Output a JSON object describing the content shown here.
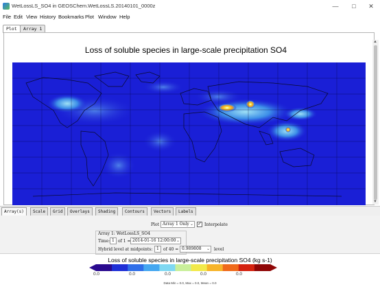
{
  "window": {
    "title": "WetLossLS_SO4 in GEOSChem.WetLossLS.20140101_0000z",
    "minimize": "—",
    "maximize": "□",
    "close": "✕"
  },
  "menu": [
    "File",
    "Edit",
    "View",
    "History",
    "Bookmarks",
    "Plot",
    "Window",
    "Help"
  ],
  "top_tabs": [
    "Plot",
    "Array 1"
  ],
  "plot": {
    "title": "Loss of soluble species in large-scale precipitation SO4"
  },
  "control_tabs": [
    "Array(s)",
    "Scale",
    "Grid",
    "Overlays",
    "Shading",
    "Contours",
    "Vectors",
    "Labels"
  ],
  "controls": {
    "plot_label": "Plot",
    "plot_mode": "Array 1 Only",
    "interpolate_label": "Interpolate",
    "interpolate_checked": "✓",
    "array_label": "Array 1: WetLossLS_SO4",
    "time_label": "Time:",
    "time_index": "1",
    "time_of": "of 1 =",
    "time_value": "2014-01-16 12:00:00",
    "level_label": "Hybrid level at midpoints:",
    "level_index": "1",
    "level_of": "of 40 =",
    "level_value": "0.989808",
    "level_unit": "level"
  },
  "colorbar": {
    "title": "Loss of soluble species in large-scale precipitation SO4 (kg s-1)",
    "ticks": [
      "0.0",
      "0.0",
      "0.0",
      "0.0",
      "0.0"
    ],
    "stats": "Data Min = 0.0, Max = 0.0, Mean = 0.0",
    "colors": [
      "#2a0a8f",
      "#1e2fd6",
      "#2f6ee8",
      "#45a7f0",
      "#7fd8f2",
      "#c9ef9a",
      "#f2e94a",
      "#f7b42a",
      "#ef6a1b",
      "#d4220f",
      "#8f0606"
    ]
  }
}
